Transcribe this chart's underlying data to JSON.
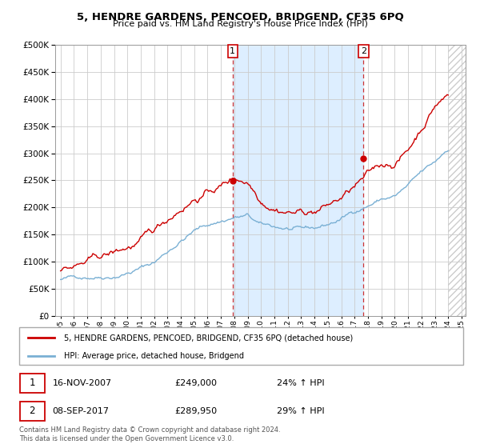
{
  "title": "5, HENDRE GARDENS, PENCOED, BRIDGEND, CF35 6PQ",
  "subtitle": "Price paid vs. HM Land Registry's House Price Index (HPI)",
  "legend_label1": "5, HENDRE GARDENS, PENCOED, BRIDGEND, CF35 6PQ (detached house)",
  "legend_label2": "HPI: Average price, detached house, Bridgend",
  "transaction1_date": "16-NOV-2007",
  "transaction1_price": 249000,
  "transaction1_hpi": "24% ↑ HPI",
  "transaction2_date": "08-SEP-2017",
  "transaction2_price": 289950,
  "transaction2_hpi": "29% ↑ HPI",
  "marker1_x": 2007.875,
  "marker1_y": 249000,
  "marker2_x": 2017.667,
  "marker2_y": 289950,
  "vline1_x": 2007.875,
  "vline2_x": 2017.667,
  "shaded_start": 2007.875,
  "shaded_end": 2017.667,
  "hatch_start": 2024.0,
  "ylim": [
    0,
    500000
  ],
  "xlim_start": 1994.6,
  "xlim_end": 2025.3,
  "color_red": "#cc0000",
  "color_blue": "#7ab0d4",
  "color_shade": "#ddeeff",
  "color_grid": "#cccccc",
  "color_vline": "#cc3333",
  "color_hatch": "#cccccc",
  "footnote": "Contains HM Land Registry data © Crown copyright and database right 2024.\nThis data is licensed under the Open Government Licence v3.0."
}
